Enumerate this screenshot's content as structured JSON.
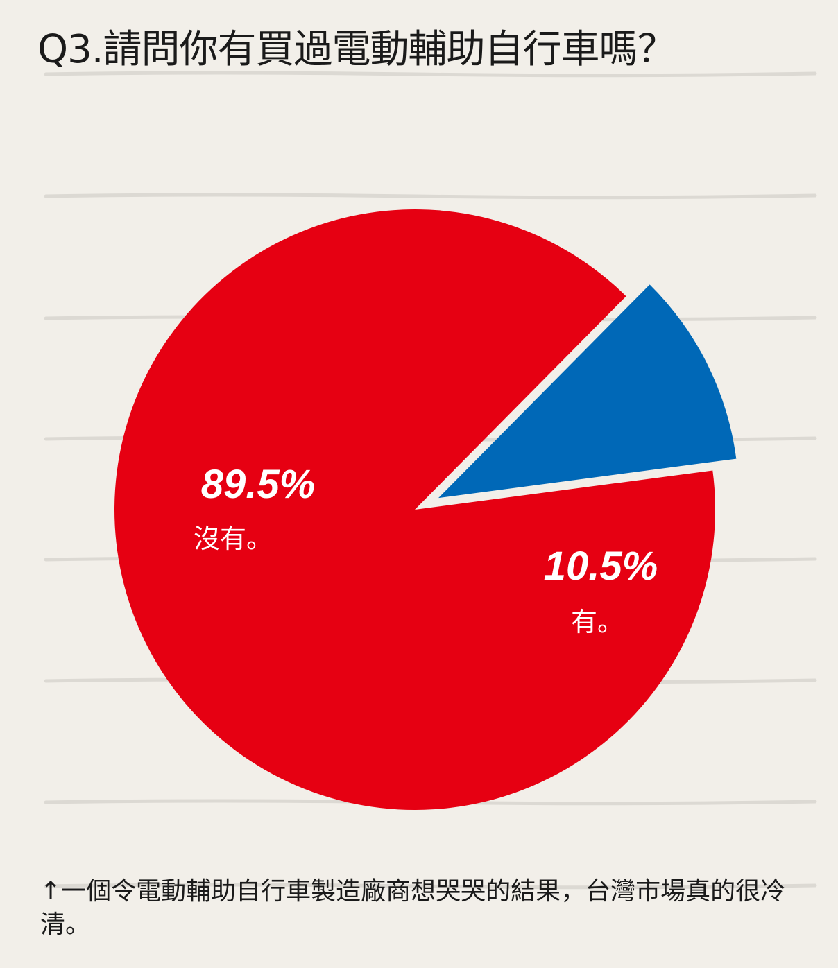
{
  "title": "Q3.請問你有買過電動輔助自行車嗎？",
  "chart_data": {
    "type": "pie",
    "slices": [
      {
        "label": "沒有。",
        "value": 89.5,
        "value_label": "89.5%",
        "color": "#e60012",
        "exploded": false
      },
      {
        "label": "有。",
        "value": 10.5,
        "value_label": "10.5%",
        "color": "#0068b7",
        "exploded": true
      }
    ]
  },
  "caption": {
    "arrow": "↑",
    "text": "一個令電動輔助自行車製造廠商想哭哭的結果，台灣市場真的很冷清。"
  },
  "colors": {
    "background": "#f2efe9",
    "rule_lines": "#dedbd5"
  }
}
